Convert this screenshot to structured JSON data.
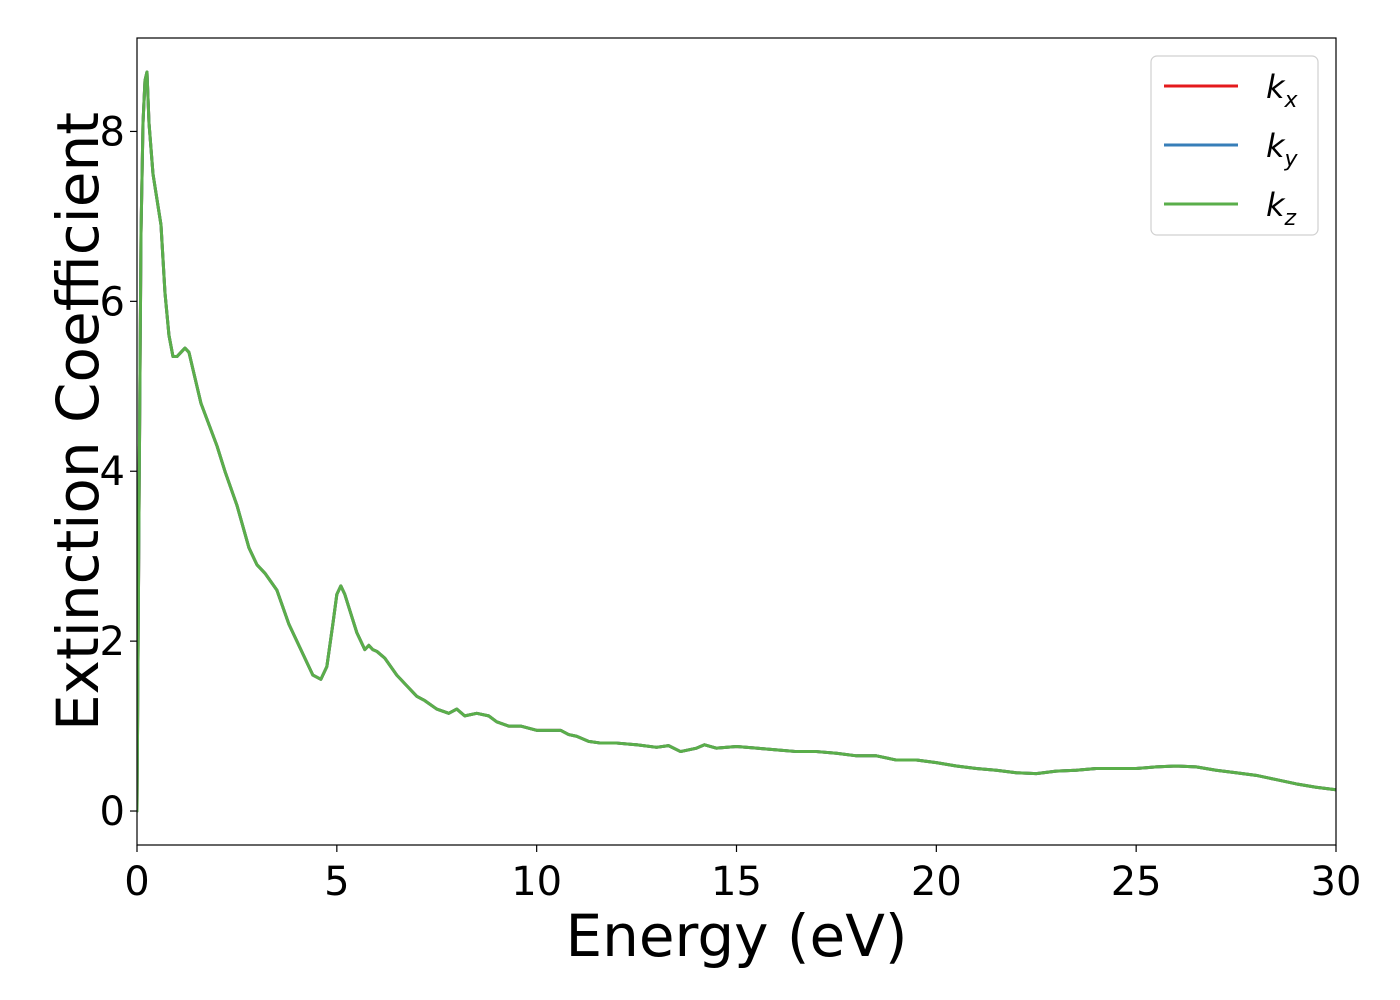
{
  "chart_data": {
    "type": "line",
    "title": "",
    "xlabel": "Energy (eV)",
    "ylabel": "Extinction Coefficient",
    "xlim": [
      0,
      30
    ],
    "ylim": [
      -0.4,
      9.1
    ],
    "xticks": [
      0,
      5,
      10,
      15,
      20,
      25,
      30
    ],
    "yticks": [
      0,
      2,
      4,
      6,
      8
    ],
    "grid": false,
    "legend_position": "top-right",
    "series": [
      {
        "name": "k",
        "subscript": "x",
        "color": "#e41a1c",
        "x": [
          0,
          0.05,
          0.1,
          0.15,
          0.2,
          0.25,
          0.3,
          0.4,
          0.5,
          0.6,
          0.7,
          0.8,
          0.9,
          1.0,
          1.1,
          1.2,
          1.3,
          1.4,
          1.5,
          1.6,
          1.8,
          2.0,
          2.2,
          2.5,
          2.8,
          3.0,
          3.2,
          3.5,
          3.8,
          4.0,
          4.2,
          4.4,
          4.6,
          4.75,
          4.9,
          5.0,
          5.1,
          5.2,
          5.3,
          5.5,
          5.7,
          5.8,
          5.9,
          6.0,
          6.2,
          6.5,
          6.8,
          7.0,
          7.2,
          7.5,
          7.8,
          8.0,
          8.2,
          8.5,
          8.8,
          9.0,
          9.3,
          9.6,
          10.0,
          10.3,
          10.6,
          10.8,
          11.0,
          11.3,
          11.6,
          12.0,
          12.5,
          13.0,
          13.3,
          13.6,
          14.0,
          14.2,
          14.5,
          15.0,
          15.5,
          16.0,
          16.5,
          17.0,
          17.5,
          18.0,
          18.5,
          19.0,
          19.5,
          20.0,
          20.5,
          21.0,
          21.5,
          22.0,
          22.5,
          23.0,
          23.5,
          24.0,
          24.5,
          25.0,
          25.5,
          26.0,
          26.5,
          27.0,
          27.5,
          28.0,
          28.5,
          29.0,
          29.5,
          30.0
        ],
        "y": [
          0.0,
          3.5,
          6.8,
          8.1,
          8.6,
          8.7,
          8.1,
          7.5,
          7.2,
          6.9,
          6.1,
          5.6,
          5.35,
          5.35,
          5.4,
          5.45,
          5.4,
          5.2,
          5.0,
          4.8,
          4.55,
          4.3,
          4.0,
          3.6,
          3.1,
          2.9,
          2.8,
          2.6,
          2.2,
          2.0,
          1.8,
          1.6,
          1.55,
          1.7,
          2.2,
          2.55,
          2.65,
          2.55,
          2.4,
          2.1,
          1.9,
          1.95,
          1.9,
          1.88,
          1.8,
          1.6,
          1.45,
          1.35,
          1.3,
          1.2,
          1.15,
          1.2,
          1.12,
          1.15,
          1.12,
          1.05,
          1.0,
          1.0,
          0.95,
          0.95,
          0.95,
          0.9,
          0.88,
          0.82,
          0.8,
          0.8,
          0.78,
          0.75,
          0.77,
          0.7,
          0.74,
          0.78,
          0.74,
          0.76,
          0.74,
          0.72,
          0.7,
          0.7,
          0.68,
          0.65,
          0.65,
          0.6,
          0.6,
          0.57,
          0.53,
          0.5,
          0.48,
          0.45,
          0.44,
          0.47,
          0.48,
          0.5,
          0.5,
          0.5,
          0.52,
          0.53,
          0.52,
          0.48,
          0.45,
          0.42,
          0.37,
          0.32,
          0.28,
          0.25
        ]
      },
      {
        "name": "k",
        "subscript": "y",
        "color": "#377eb8",
        "x": [
          0,
          0.05,
          0.1,
          0.15,
          0.2,
          0.25,
          0.3,
          0.4,
          0.5,
          0.6,
          0.7,
          0.8,
          0.9,
          1.0,
          1.1,
          1.2,
          1.3,
          1.4,
          1.5,
          1.6,
          1.8,
          2.0,
          2.2,
          2.5,
          2.8,
          3.0,
          3.2,
          3.5,
          3.8,
          4.0,
          4.2,
          4.4,
          4.6,
          4.75,
          4.9,
          5.0,
          5.1,
          5.2,
          5.3,
          5.5,
          5.7,
          5.8,
          5.9,
          6.0,
          6.2,
          6.5,
          6.8,
          7.0,
          7.2,
          7.5,
          7.8,
          8.0,
          8.2,
          8.5,
          8.8,
          9.0,
          9.3,
          9.6,
          10.0,
          10.3,
          10.6,
          10.8,
          11.0,
          11.3,
          11.6,
          12.0,
          12.5,
          13.0,
          13.3,
          13.6,
          14.0,
          14.2,
          14.5,
          15.0,
          15.5,
          16.0,
          16.5,
          17.0,
          17.5,
          18.0,
          18.5,
          19.0,
          19.5,
          20.0,
          20.5,
          21.0,
          21.5,
          22.0,
          22.5,
          23.0,
          23.5,
          24.0,
          24.5,
          25.0,
          25.5,
          26.0,
          26.5,
          27.0,
          27.5,
          28.0,
          28.5,
          29.0,
          29.5,
          30.0
        ],
        "y": [
          0.0,
          3.5,
          6.8,
          8.1,
          8.6,
          8.7,
          8.1,
          7.5,
          7.2,
          6.9,
          6.1,
          5.6,
          5.35,
          5.35,
          5.4,
          5.45,
          5.4,
          5.2,
          5.0,
          4.8,
          4.55,
          4.3,
          4.0,
          3.6,
          3.1,
          2.9,
          2.8,
          2.6,
          2.2,
          2.0,
          1.8,
          1.6,
          1.55,
          1.7,
          2.2,
          2.55,
          2.65,
          2.55,
          2.4,
          2.1,
          1.9,
          1.95,
          1.9,
          1.88,
          1.8,
          1.6,
          1.45,
          1.35,
          1.3,
          1.2,
          1.15,
          1.2,
          1.12,
          1.15,
          1.12,
          1.05,
          1.0,
          1.0,
          0.95,
          0.95,
          0.95,
          0.9,
          0.88,
          0.82,
          0.8,
          0.8,
          0.78,
          0.75,
          0.77,
          0.7,
          0.74,
          0.78,
          0.74,
          0.76,
          0.74,
          0.72,
          0.7,
          0.7,
          0.68,
          0.65,
          0.65,
          0.6,
          0.6,
          0.57,
          0.53,
          0.5,
          0.48,
          0.45,
          0.44,
          0.47,
          0.48,
          0.5,
          0.5,
          0.5,
          0.52,
          0.53,
          0.52,
          0.48,
          0.45,
          0.42,
          0.37,
          0.32,
          0.28,
          0.25
        ]
      },
      {
        "name": "k",
        "subscript": "z",
        "color": "#5aae4a",
        "x": [
          0,
          0.05,
          0.1,
          0.15,
          0.2,
          0.25,
          0.3,
          0.4,
          0.5,
          0.6,
          0.7,
          0.8,
          0.9,
          1.0,
          1.1,
          1.2,
          1.3,
          1.4,
          1.5,
          1.6,
          1.8,
          2.0,
          2.2,
          2.5,
          2.8,
          3.0,
          3.2,
          3.5,
          3.8,
          4.0,
          4.2,
          4.4,
          4.6,
          4.75,
          4.9,
          5.0,
          5.1,
          5.2,
          5.3,
          5.5,
          5.7,
          5.8,
          5.9,
          6.0,
          6.2,
          6.5,
          6.8,
          7.0,
          7.2,
          7.5,
          7.8,
          8.0,
          8.2,
          8.5,
          8.8,
          9.0,
          9.3,
          9.6,
          10.0,
          10.3,
          10.6,
          10.8,
          11.0,
          11.3,
          11.6,
          12.0,
          12.5,
          13.0,
          13.3,
          13.6,
          14.0,
          14.2,
          14.5,
          15.0,
          15.5,
          16.0,
          16.5,
          17.0,
          17.5,
          18.0,
          18.5,
          19.0,
          19.5,
          20.0,
          20.5,
          21.0,
          21.5,
          22.0,
          22.5,
          23.0,
          23.5,
          24.0,
          24.5,
          25.0,
          25.5,
          26.0,
          26.5,
          27.0,
          27.5,
          28.0,
          28.5,
          29.0,
          29.5,
          30.0
        ],
        "y": [
          0.0,
          3.5,
          6.8,
          8.1,
          8.6,
          8.7,
          8.1,
          7.5,
          7.2,
          6.9,
          6.1,
          5.6,
          5.35,
          5.35,
          5.4,
          5.45,
          5.4,
          5.2,
          5.0,
          4.8,
          4.55,
          4.3,
          4.0,
          3.6,
          3.1,
          2.9,
          2.8,
          2.6,
          2.2,
          2.0,
          1.8,
          1.6,
          1.55,
          1.7,
          2.2,
          2.55,
          2.65,
          2.55,
          2.4,
          2.1,
          1.9,
          1.95,
          1.9,
          1.88,
          1.8,
          1.6,
          1.45,
          1.35,
          1.3,
          1.2,
          1.15,
          1.2,
          1.12,
          1.15,
          1.12,
          1.05,
          1.0,
          1.0,
          0.95,
          0.95,
          0.95,
          0.9,
          0.88,
          0.82,
          0.8,
          0.8,
          0.78,
          0.75,
          0.77,
          0.7,
          0.74,
          0.78,
          0.74,
          0.76,
          0.74,
          0.72,
          0.7,
          0.7,
          0.68,
          0.65,
          0.65,
          0.6,
          0.6,
          0.57,
          0.53,
          0.5,
          0.48,
          0.45,
          0.44,
          0.47,
          0.48,
          0.5,
          0.5,
          0.5,
          0.52,
          0.53,
          0.52,
          0.48,
          0.45,
          0.42,
          0.37,
          0.32,
          0.28,
          0.25
        ]
      }
    ]
  }
}
